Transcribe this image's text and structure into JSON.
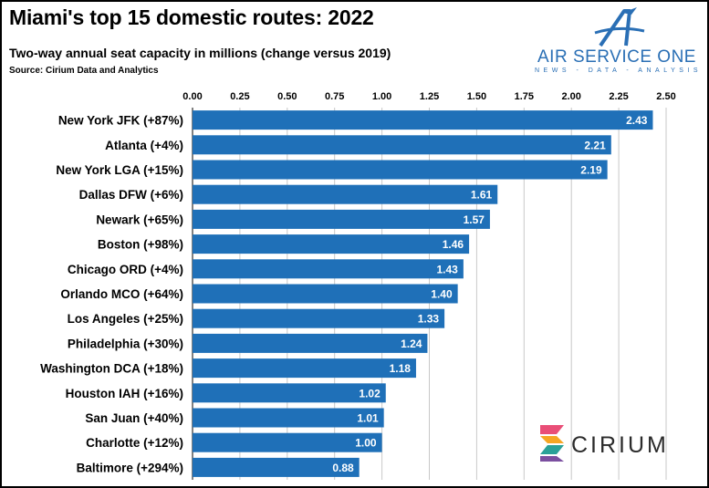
{
  "header": {
    "title": "Miami's top 15 domestic routes: 2022",
    "subtitle": "Two-way annual seat capacity in millions (change versus 2019)",
    "source": "Source: Cirium Data and Analytics"
  },
  "logos": {
    "air_service_one": {
      "name": "AIR SERVICE ONE",
      "tagline": "NEWS - DATA - ANALYSIS",
      "color": "#2a6fb5"
    },
    "cirium": {
      "name": "CIRIUM"
    }
  },
  "chart_data": {
    "type": "bar",
    "orientation": "horizontal",
    "title": "Miami's top 15 domestic routes: 2022",
    "xlabel": "",
    "ylabel": "",
    "xlim": [
      0,
      2.5
    ],
    "xticks": [
      "0.00",
      "0.25",
      "0.50",
      "0.75",
      "1.00",
      "1.25",
      "1.50",
      "1.75",
      "2.00",
      "2.25",
      "2.50"
    ],
    "x_axis_position": "top",
    "grid": "vertical",
    "legend": "none",
    "bar_color": "#1f70b8",
    "categories": [
      "New York JFK (+87%)",
      "Atlanta (+4%)",
      "New York LGA (+15%)",
      "Dallas DFW (+6%)",
      "Newark (+65%)",
      "Boston (+98%)",
      "Chicago ORD (+4%)",
      "Orlando MCO (+64%)",
      "Los Angeles (+25%)",
      "Philadelphia (+30%)",
      "Washington DCA (+18%)",
      "Houston IAH (+16%)",
      "San Juan (+40%)",
      "Charlotte (+12%)",
      "Baltimore (+294%)"
    ],
    "values": [
      2.43,
      2.21,
      2.19,
      1.61,
      1.57,
      1.46,
      1.43,
      1.4,
      1.33,
      1.24,
      1.18,
      1.02,
      1.01,
      1.0,
      0.88
    ],
    "data_labels": [
      "2.43",
      "2.21",
      "2.19",
      "1.61",
      "1.57",
      "1.46",
      "1.43",
      "1.40",
      "1.33",
      "1.24",
      "1.18",
      "1.02",
      "1.01",
      "1.00",
      "0.88"
    ]
  }
}
